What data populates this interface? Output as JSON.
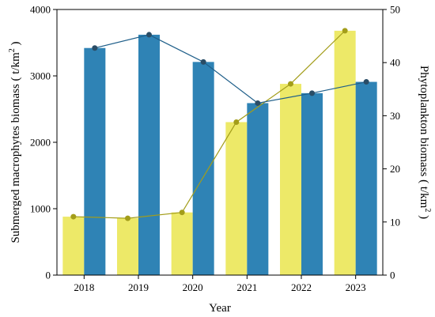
{
  "chart_data": {
    "type": "bar",
    "categories": [
      "2018",
      "2019",
      "2020",
      "2021",
      "2022",
      "2023"
    ],
    "xlabel": "Year",
    "ylabel_left": "Submerged macrophytes biomass ( t/km",
    "ylabel_left_sup": "2",
    "ylabel_left_end": ")",
    "ylabel_right": "Phytoplankton biomass ( t/km",
    "ylabel_right_sup": "2",
    "ylabel_right_end": ")",
    "ylim_left": [
      0,
      4000
    ],
    "ylim_right": [
      0,
      50
    ],
    "yticks_left": [
      0,
      1000,
      2000,
      3000,
      4000
    ],
    "yticks_right": [
      0,
      10,
      20,
      30,
      40,
      50
    ],
    "series": [
      {
        "axis": "right",
        "bar_values": [
          11,
          10.7,
          11.8,
          28.8,
          36,
          46
        ],
        "line_values": [
          11,
          10.7,
          11.8,
          28.8,
          36,
          46
        ],
        "bar_color": "#ede968",
        "line_color": "#a39d1a",
        "marker_color": "#a39d1a"
      },
      {
        "axis": "left",
        "bar_values": [
          3420,
          3620,
          3210,
          2590,
          2740,
          2910
        ],
        "line_values": [
          3420,
          3620,
          3210,
          2590,
          2740,
          2910
        ],
        "bar_color": "#2f83b5",
        "line_color": "#1f5f8a",
        "marker_color": "#2a4d66"
      }
    ],
    "grid": false,
    "legend": false
  }
}
